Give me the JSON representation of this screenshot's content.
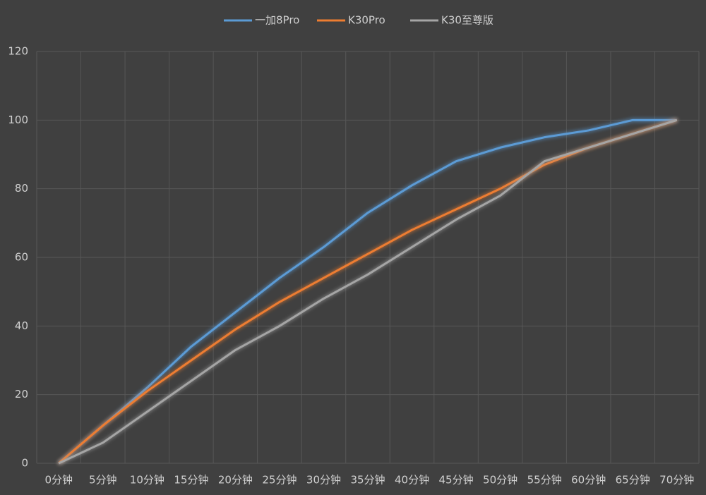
{
  "chart_data": {
    "type": "line",
    "categories": [
      "0分钟",
      "5分钟",
      "10分钟",
      "15分钟",
      "20分钟",
      "25分钟",
      "30分钟",
      "35分钟",
      "40分钟",
      "45分钟",
      "50分钟",
      "55分钟",
      "60分钟",
      "65分钟",
      "70分钟"
    ],
    "series": [
      {
        "name": "一加8Pro",
        "color": "#5b9bd5",
        "values": [
          0,
          11,
          22,
          34,
          44,
          54,
          63,
          73,
          81,
          88,
          92,
          95,
          97,
          100,
          100
        ]
      },
      {
        "name": "K30Pro",
        "color": "#ed7d31",
        "values": [
          0,
          11,
          21,
          30,
          39,
          47,
          54,
          61,
          68,
          74,
          80,
          87,
          92,
          96,
          100
        ]
      },
      {
        "name": "K30至尊版",
        "color": "#a5a5a5",
        "values": [
          0,
          6,
          15,
          24,
          33,
          40,
          48,
          55,
          63,
          71,
          78,
          88,
          92,
          96,
          100
        ]
      }
    ],
    "ylim": [
      0,
      120
    ],
    "yticks": [
      0,
      20,
      40,
      60,
      80,
      100,
      120
    ],
    "grid": true,
    "legend": "top"
  }
}
